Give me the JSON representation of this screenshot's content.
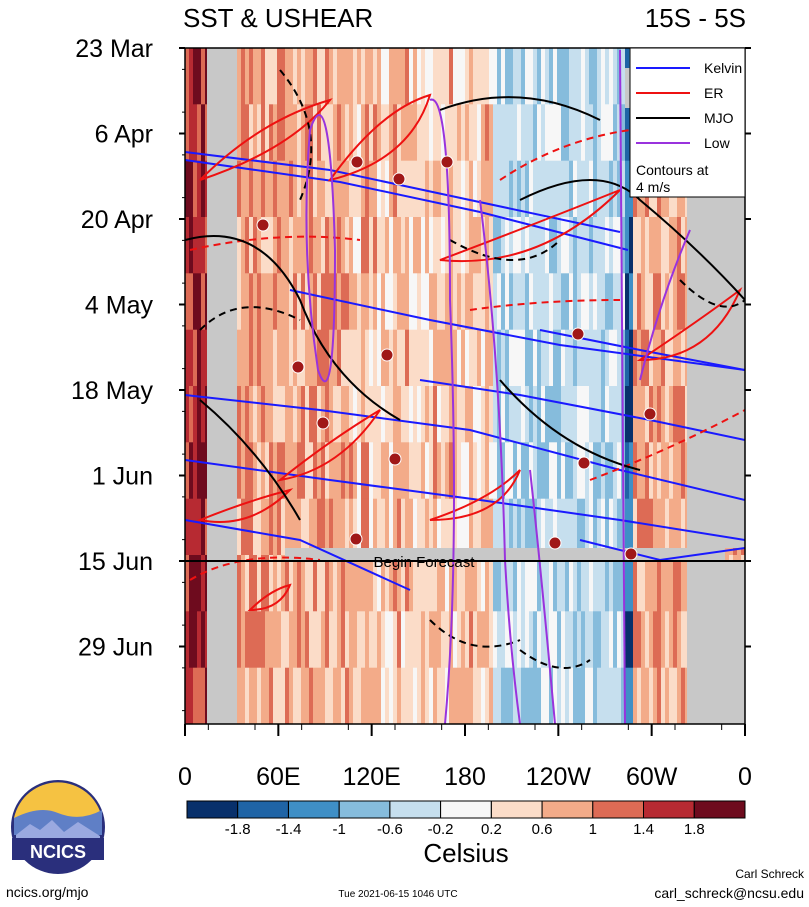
{
  "chart_data": {
    "type": "heatmap",
    "title_left": "SST & USHEAR",
    "title_right": "15S - 5S",
    "x_ticks": [
      "0",
      "60E",
      "120E",
      "180",
      "120W",
      "60W",
      "0"
    ],
    "y_ticks": [
      "23 Mar",
      "6 Apr",
      "20 Apr",
      "4 May",
      "18 May",
      "1 Jun",
      "15 Jun",
      "29 Jun"
    ],
    "legend": {
      "entries": [
        {
          "name": "Kelvin",
          "color": "#1a1aff"
        },
        {
          "name": "ER",
          "color": "#ee1111"
        },
        {
          "name": "MJO",
          "color": "#000000"
        },
        {
          "name": "Low",
          "color": "#9933dd"
        }
      ],
      "note_line1": "Contours at",
      "note_line2": "4 m/s"
    },
    "forecast_label": "Begin Forecast",
    "colorbar": {
      "colors": [
        "#08306b",
        "#1f64a6",
        "#3f8fc6",
        "#86bcdc",
        "#c6dfee",
        "#f7f7f7",
        "#fbdcc8",
        "#f3ab89",
        "#dd6b55",
        "#b72a32",
        "#6e0b1e"
      ],
      "labels": [
        "-1.8",
        "-1.4",
        "-1",
        "-0.6",
        "-0.2",
        "0.2",
        "0.6",
        "1",
        "1.4",
        "1.8"
      ],
      "unit": "Celsius"
    }
  },
  "footer": {
    "logo_text": "NCICS",
    "url": "ncics.org/mjo",
    "timestamp": "Tue 2021-06-15 1046 UTC",
    "author": "Carl Schreck",
    "email": "carl_schreck@ncsu.edu"
  }
}
